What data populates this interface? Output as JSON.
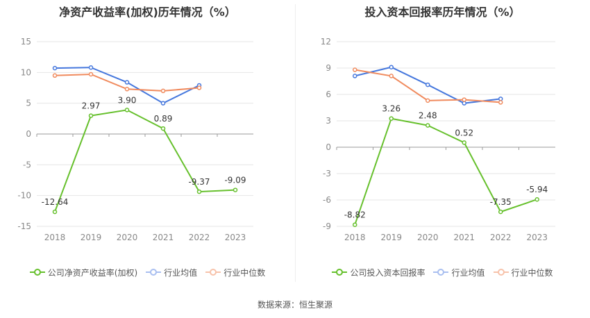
{
  "source_label": "数据来源：恒生聚源",
  "colors": {
    "company": "#66c02c",
    "industry_avg": "#4577dd",
    "industry_median": "#f08a5d"
  },
  "chart_data": [
    {
      "type": "line",
      "title": "净资产收益率(加权)历年情况（%）",
      "categories": [
        "2018",
        "2019",
        "2020",
        "2021",
        "2022",
        "2023"
      ],
      "ylim": [
        -15,
        15
      ],
      "yticks": [
        "15",
        "10",
        "5",
        "0",
        "-5",
        "-10",
        "-15"
      ],
      "ytick_values": [
        15,
        10,
        5,
        0,
        -5,
        -10,
        -15
      ],
      "grid": true,
      "legend_position": "bottom",
      "series": [
        {
          "name": "公司净资产收益率(加权)",
          "color": "#66c02c",
          "values": [
            -12.64,
            2.97,
            3.9,
            0.89,
            -9.37,
            -9.09
          ],
          "labels": [
            "-12.64",
            "2.97",
            "3.90",
            "0.89",
            "-9.37",
            "-9.09"
          ]
        },
        {
          "name": "行业均值",
          "color": "#4577dd",
          "values": [
            10.7,
            10.8,
            8.4,
            5.0,
            7.9,
            null
          ]
        },
        {
          "name": "行业中位数",
          "color": "#f08a5d",
          "values": [
            9.5,
            9.7,
            7.3,
            7.0,
            7.5,
            null
          ]
        }
      ]
    },
    {
      "type": "line",
      "title": "投入资本回报率历年情况（%）",
      "categories": [
        "2018",
        "2019",
        "2020",
        "2021",
        "2022",
        "2023"
      ],
      "ylim": [
        -9,
        12
      ],
      "yticks": [
        "12",
        "9",
        "6",
        "3",
        "0",
        "-3",
        "-6",
        "-9"
      ],
      "ytick_values": [
        12,
        9,
        6,
        3,
        0,
        -3,
        -6,
        -9
      ],
      "grid": true,
      "legend_position": "bottom",
      "series": [
        {
          "name": "公司投入资本回报率",
          "color": "#66c02c",
          "values": [
            -8.82,
            3.26,
            2.48,
            0.52,
            -7.35,
            -5.94
          ],
          "labels": [
            "-8.82",
            "3.26",
            "2.48",
            "0.52",
            "-7.35",
            "-5.94"
          ]
        },
        {
          "name": "行业均值",
          "color": "#4577dd",
          "values": [
            8.1,
            9.1,
            7.1,
            5.0,
            5.5,
            null
          ]
        },
        {
          "name": "行业中位数",
          "color": "#f08a5d",
          "values": [
            8.8,
            8.1,
            5.3,
            5.4,
            5.1,
            null
          ]
        }
      ]
    }
  ]
}
